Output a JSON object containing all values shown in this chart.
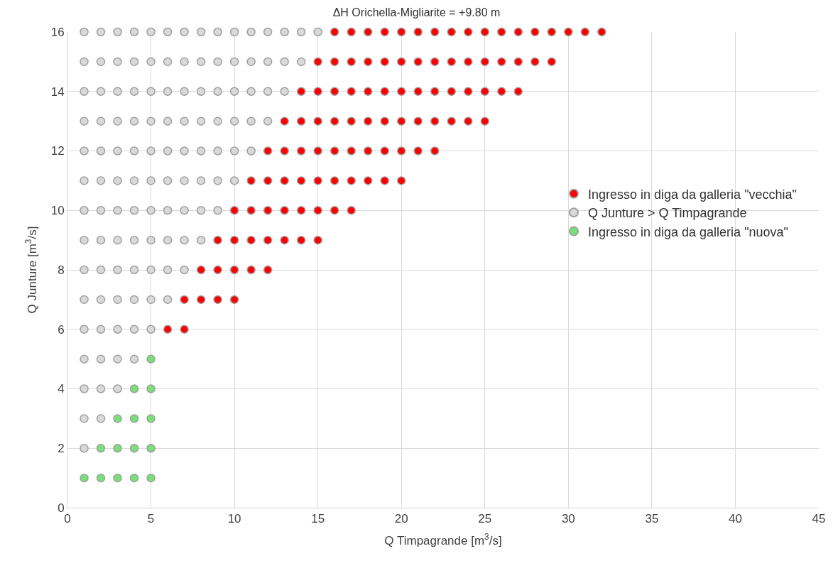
{
  "chart_data": {
    "type": "scatter",
    "title": "ΔH Orichella-Migliarite = +9.80 m",
    "xlabel": "Q Timpagrande [m$^{3}$/s]",
    "ylabel": "Q Junture [m$^{3}$/s]",
    "xlim": [
      0,
      45
    ],
    "xticks": [
      0,
      5,
      10,
      15,
      20,
      25,
      30,
      35,
      40,
      45
    ],
    "ylim": [
      0,
      16
    ],
    "yticks": [
      0,
      2,
      4,
      6,
      8,
      10,
      12,
      14,
      16
    ],
    "grid": true,
    "legend": "right",
    "marker": "circle",
    "series": [
      {
        "name": "Ingresso in diga da galleria \"vecchia\"",
        "color": "#ff0000",
        "x": [
          16,
          17,
          18,
          19,
          20,
          21,
          22,
          23,
          24,
          25,
          26,
          27,
          28,
          29,
          30,
          31,
          32,
          15,
          16,
          17,
          18,
          19,
          20,
          21,
          22,
          23,
          24,
          25,
          26,
          27,
          28,
          29,
          14,
          15,
          16,
          17,
          18,
          19,
          20,
          21,
          22,
          23,
          24,
          25,
          26,
          27,
          13,
          14,
          15,
          16,
          17,
          18,
          19,
          20,
          21,
          22,
          23,
          24,
          25,
          12,
          13,
          14,
          15,
          16,
          17,
          18,
          19,
          20,
          21,
          22,
          11,
          12,
          13,
          14,
          15,
          16,
          17,
          18,
          19,
          20,
          10,
          11,
          12,
          13,
          14,
          15,
          16,
          17,
          9,
          10,
          11,
          12,
          13,
          14,
          15,
          8,
          9,
          10,
          11,
          12,
          7,
          8,
          9,
          10,
          6,
          7
        ],
        "values": [
          16,
          16,
          16,
          16,
          16,
          16,
          16,
          16,
          16,
          16,
          16,
          16,
          16,
          16,
          16,
          16,
          16,
          15,
          15,
          15,
          15,
          15,
          15,
          15,
          15,
          15,
          15,
          15,
          15,
          15,
          15,
          15,
          14,
          14,
          14,
          14,
          14,
          14,
          14,
          14,
          14,
          14,
          14,
          14,
          14,
          14,
          13,
          13,
          13,
          13,
          13,
          13,
          13,
          13,
          13,
          13,
          13,
          13,
          13,
          12,
          12,
          12,
          12,
          12,
          12,
          12,
          12,
          12,
          12,
          12,
          11,
          11,
          11,
          11,
          11,
          11,
          11,
          11,
          11,
          11,
          10,
          10,
          10,
          10,
          10,
          10,
          10,
          10,
          9,
          9,
          9,
          9,
          9,
          9,
          9,
          8,
          8,
          8,
          8,
          8,
          7,
          7,
          7,
          7,
          6,
          6
        ]
      },
      {
        "name": "Q Junture > Q Timpagrande",
        "color": "#d9d9d9",
        "x": [
          1,
          2,
          3,
          4,
          5,
          6,
          7,
          8,
          9,
          10,
          11,
          12,
          13,
          14,
          15,
          1,
          2,
          3,
          4,
          5,
          6,
          7,
          8,
          9,
          10,
          11,
          12,
          13,
          14,
          1,
          2,
          3,
          4,
          5,
          6,
          7,
          8,
          9,
          10,
          11,
          12,
          13,
          1,
          2,
          3,
          4,
          5,
          6,
          7,
          8,
          9,
          10,
          11,
          12,
          1,
          2,
          3,
          4,
          5,
          6,
          7,
          8,
          9,
          10,
          11,
          1,
          2,
          3,
          4,
          5,
          6,
          7,
          8,
          9,
          10,
          1,
          2,
          3,
          4,
          5,
          6,
          7,
          8,
          9,
          1,
          2,
          3,
          4,
          5,
          6,
          7,
          8,
          1,
          2,
          3,
          4,
          5,
          6,
          7,
          1,
          2,
          3,
          4,
          5,
          6,
          1,
          2,
          3,
          4,
          5,
          1,
          2,
          3,
          4,
          1,
          2,
          3,
          1,
          2,
          1
        ],
        "values": [
          16,
          16,
          16,
          16,
          16,
          16,
          16,
          16,
          16,
          16,
          16,
          16,
          16,
          16,
          16,
          15,
          15,
          15,
          15,
          15,
          15,
          15,
          15,
          15,
          15,
          15,
          15,
          15,
          15,
          14,
          14,
          14,
          14,
          14,
          14,
          14,
          14,
          14,
          14,
          14,
          14,
          14,
          13,
          13,
          13,
          13,
          13,
          13,
          13,
          13,
          13,
          13,
          13,
          13,
          12,
          12,
          12,
          12,
          12,
          12,
          12,
          12,
          12,
          12,
          12,
          11,
          11,
          11,
          11,
          11,
          11,
          11,
          11,
          11,
          11,
          10,
          10,
          10,
          10,
          10,
          10,
          10,
          10,
          10,
          9,
          9,
          9,
          9,
          9,
          9,
          9,
          9,
          8,
          8,
          8,
          8,
          8,
          8,
          8,
          7,
          7,
          7,
          7,
          7,
          7,
          6,
          6,
          6,
          6,
          6,
          5,
          5,
          5,
          5,
          4,
          4,
          4,
          3,
          3,
          2
        ]
      },
      {
        "name": "Ingresso in diga da galleria \"nuova\"",
        "color": "#77e077",
        "x": [
          5,
          4,
          5,
          3,
          4,
          5,
          2,
          3,
          4,
          5,
          1,
          2,
          3,
          4,
          5
        ],
        "values": [
          5,
          4,
          4,
          3,
          3,
          3,
          2,
          2,
          2,
          2,
          1,
          1,
          1,
          1,
          1
        ]
      }
    ]
  }
}
